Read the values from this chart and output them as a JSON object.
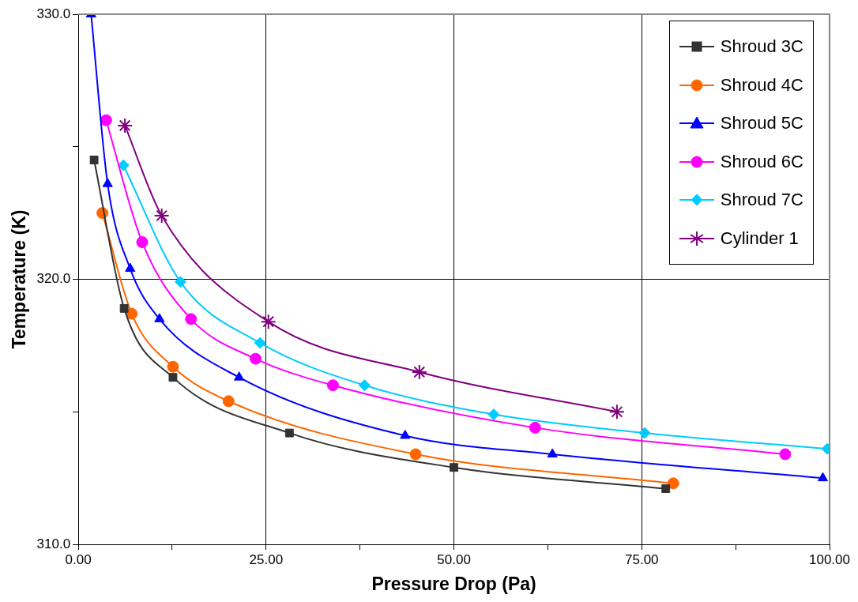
{
  "chart_data": {
    "type": "line",
    "xlabel": "Pressure Drop (Pa)",
    "ylabel": "Temperature (K)",
    "xlim": [
      0,
      100
    ],
    "ylim": [
      310,
      330
    ],
    "xticks": [
      {
        "value": 0,
        "label": "0.00"
      },
      {
        "value": 12.5,
        "label": null
      },
      {
        "value": 25,
        "label": "25.00"
      },
      {
        "value": 37.5,
        "label": null
      },
      {
        "value": 50,
        "label": "50.00"
      },
      {
        "value": 62.5,
        "label": null
      },
      {
        "value": 75,
        "label": "75.00"
      },
      {
        "value": 87.5,
        "label": null
      },
      {
        "value": 100,
        "label": "100.00"
      }
    ],
    "yticks": [
      {
        "value": 310,
        "label": "310.0"
      },
      {
        "value": 315,
        "label": null
      },
      {
        "value": 320,
        "label": "320.0"
      },
      {
        "value": 325,
        "label": null
      },
      {
        "value": 330,
        "label": "330.0"
      }
    ],
    "grid": true,
    "legend": "top right",
    "series": [
      {
        "name": "Shroud 3C",
        "color": "#333333",
        "marker": "square",
        "x": [
          2.1,
          6.1,
          12.6,
          28.1,
          50.0,
          78.2
        ],
        "values": [
          324.5,
          318.9,
          316.3,
          314.2,
          312.9,
          312.1
        ]
      },
      {
        "name": "Shroud 4C",
        "color": "#ff6600",
        "marker": "circle",
        "x": [
          3.2,
          7.1,
          12.6,
          20.0,
          44.9,
          79.2
        ],
        "values": [
          322.5,
          318.7,
          316.7,
          315.4,
          313.4,
          312.3
        ]
      },
      {
        "name": "Shroud 5C",
        "color": "#0000ff",
        "marker": "triangle",
        "x": [
          1.7,
          3.9,
          6.9,
          10.8,
          21.4,
          43.5,
          63.1,
          99.1
        ],
        "values": [
          330.0,
          323.6,
          320.4,
          318.5,
          316.3,
          314.1,
          313.4,
          312.5
        ]
      },
      {
        "name": "Shroud 6C",
        "color": "#ff00ff",
        "marker": "circle",
        "x": [
          3.7,
          8.5,
          15.0,
          23.6,
          33.9,
          60.8,
          94.1
        ],
        "values": [
          326.0,
          321.4,
          318.5,
          317.0,
          316.0,
          314.4,
          313.4
        ]
      },
      {
        "name": "Shroud 7C",
        "color": "#00ccff",
        "marker": "diamond",
        "x": [
          6.0,
          13.6,
          24.2,
          38.1,
          55.3,
          75.4,
          99.7
        ],
        "values": [
          324.3,
          319.9,
          317.6,
          316.0,
          314.9,
          314.2,
          313.6
        ]
      },
      {
        "name": "Cylinder 1",
        "color": "#800080",
        "marker": "cross",
        "x": [
          6.2,
          11.1,
          25.3,
          45.4,
          71.7
        ],
        "values": [
          325.8,
          322.4,
          318.4,
          316.5,
          315.0
        ]
      }
    ]
  }
}
